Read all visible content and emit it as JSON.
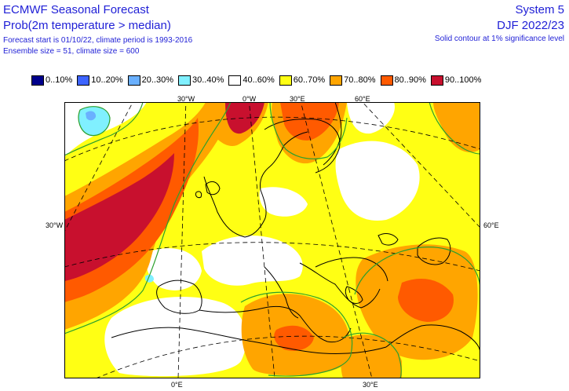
{
  "header": {
    "title": "ECMWF Seasonal Forecast",
    "subtitle": "Prob(2m temperature > median)",
    "info_line1": "Forecast start is 01/10/22, climate period is 1993-2016",
    "info_line2": "Ensemble size = 51, climate size = 600",
    "system": "System 5",
    "season": "DJF 2022/23",
    "significance_note": "Solid contour at 1% significance level"
  },
  "legend": [
    {
      "label": "0..10%",
      "color": "#00008c"
    },
    {
      "label": "10..20%",
      "color": "#3d64ff"
    },
    {
      "label": "20..30%",
      "color": "#6ab0ff"
    },
    {
      "label": "30..40%",
      "color": "#80f0ff"
    },
    {
      "label": "40..60%",
      "color": "#ffffff"
    },
    {
      "label": "60..70%",
      "color": "#ffff14"
    },
    {
      "label": "70..80%",
      "color": "#ffa500"
    },
    {
      "label": "80..90%",
      "color": "#ff5a00"
    },
    {
      "label": "90..100%",
      "color": "#c8102e"
    }
  ],
  "axis_labels": {
    "top_30w": "30°W",
    "top_0e": "0°W",
    "top_30e": "30°E",
    "top_60e": "60°E",
    "left_30w": "30°W",
    "right_60e": "60°E",
    "bottom_0e": "0°E",
    "bottom_30e": "30°E"
  },
  "map": {
    "projection": "lambert-conformal",
    "region": "Europe, North Atlantic, North Africa and Middle East",
    "variable": "Prob(2m temperature > median)",
    "significance_contour_color": "#2ca02c",
    "coastline_color": "#000000",
    "graticule_style": "dashed"
  }
}
